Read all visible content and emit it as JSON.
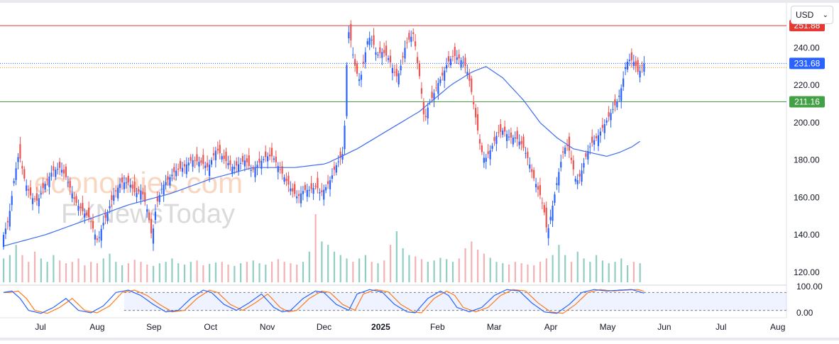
{
  "toolbar": {
    "currency_label": "USD",
    "currency_icon": "chevron-down-icon"
  },
  "watermark": {
    "line1": "economies.com",
    "line2": "FXNewsToday"
  },
  "chart_data": {
    "type": "candlestick",
    "title": "",
    "colors": {
      "up": "#2962ff",
      "down": "#ef5350",
      "ma": "#3d6df0",
      "volume_up": "#7cc6b8",
      "volume_down": "#f0a3a6",
      "resistance": "#e53935",
      "support": "#43a047",
      "current": "#2962ff",
      "stoch_k": "#2962ff",
      "stoch_d": "#ff7a1a"
    },
    "x_axis": {
      "ticks": [
        "Jul",
        "Aug",
        "Sep",
        "Oct",
        "Nov",
        "Dec",
        "2025",
        "Feb",
        "Mar",
        "Apr",
        "May",
        "Jun",
        "Jul",
        "Aug"
      ],
      "bold_ticks": [
        "2025"
      ]
    },
    "y_axis": {
      "ticks": [
        "240.00",
        "220.00",
        "200.00",
        "180.00",
        "160.00",
        "140.00",
        "120.00"
      ],
      "ylim": [
        115,
        258
      ]
    },
    "horizontal_lines": [
      {
        "label": "251.88",
        "value": 251.88,
        "role": "resistance"
      },
      {
        "label": "211.16",
        "value": 211.16,
        "role": "support"
      },
      {
        "label": "231.68",
        "value": 231.68,
        "role": "current-price"
      }
    ],
    "indicator": {
      "name": "stochastic",
      "ticks": [
        "100.00",
        "0.00"
      ],
      "upper_band": 80,
      "lower_band": 20
    },
    "price_path": [
      [
        0,
        138
      ],
      [
        3,
        148
      ],
      [
        6,
        172
      ],
      [
        8,
        184
      ],
      [
        11,
        168
      ],
      [
        14,
        160
      ],
      [
        17,
        158
      ],
      [
        20,
        166
      ],
      [
        24,
        174
      ],
      [
        28,
        176
      ],
      [
        31,
        170
      ],
      [
        35,
        158
      ],
      [
        39,
        152
      ],
      [
        42,
        149
      ],
      [
        44,
        142
      ],
      [
        46,
        136
      ],
      [
        48,
        145
      ],
      [
        50,
        150
      ],
      [
        53,
        160
      ],
      [
        57,
        168
      ],
      [
        61,
        168
      ],
      [
        64,
        162
      ],
      [
        67,
        164
      ],
      [
        70,
        152
      ],
      [
        72,
        138
      ],
      [
        74,
        156
      ],
      [
        77,
        166
      ],
      [
        80,
        170
      ],
      [
        83,
        174
      ],
      [
        87,
        176
      ],
      [
        91,
        180
      ],
      [
        95,
        179
      ],
      [
        99,
        176
      ],
      [
        103,
        186
      ],
      [
        107,
        180
      ],
      [
        111,
        176
      ],
      [
        114,
        178
      ],
      [
        117,
        180
      ],
      [
        120,
        174
      ],
      [
        123,
        178
      ],
      [
        127,
        182
      ],
      [
        130,
        182
      ],
      [
        133,
        176
      ],
      [
        136,
        170
      ],
      [
        139,
        164
      ],
      [
        142,
        160
      ],
      [
        145,
        164
      ],
      [
        148,
        164
      ],
      [
        151,
        166
      ],
      [
        153,
        162
      ],
      [
        156,
        166
      ],
      [
        158,
        170
      ],
      [
        160,
        176
      ],
      [
        162,
        180
      ],
      [
        164,
        184
      ],
      [
        165,
        208
      ],
      [
        166,
        246
      ],
      [
        167,
        250
      ],
      [
        168,
        240
      ],
      [
        170,
        228
      ],
      [
        172,
        222
      ],
      [
        174,
        234
      ],
      [
        176,
        246
      ],
      [
        178,
        244
      ],
      [
        180,
        236
      ],
      [
        183,
        238
      ],
      [
        186,
        234
      ],
      [
        188,
        228
      ],
      [
        190,
        224
      ],
      [
        192,
        232
      ],
      [
        194,
        242
      ],
      [
        196,
        245
      ],
      [
        198,
        248
      ],
      [
        199,
        236
      ],
      [
        201,
        222
      ],
      [
        203,
        200
      ],
      [
        205,
        210
      ],
      [
        207,
        214
      ],
      [
        209,
        220
      ],
      [
        212,
        226
      ],
      [
        214,
        232
      ],
      [
        217,
        236
      ],
      [
        220,
        234
      ],
      [
        222,
        232
      ],
      [
        224,
        226
      ],
      [
        226,
        214
      ],
      [
        228,
        200
      ],
      [
        230,
        186
      ],
      [
        232,
        180
      ],
      [
        235,
        186
      ],
      [
        238,
        194
      ],
      [
        241,
        196
      ],
      [
        244,
        192
      ],
      [
        247,
        192
      ],
      [
        250,
        188
      ],
      [
        253,
        180
      ],
      [
        255,
        172
      ],
      [
        257,
        166
      ],
      [
        259,
        160
      ],
      [
        261,
        150
      ],
      [
        262,
        140
      ],
      [
        264,
        152
      ],
      [
        266,
        164
      ],
      [
        268,
        176
      ],
      [
        270,
        186
      ],
      [
        272,
        188
      ],
      [
        274,
        178
      ],
      [
        276,
        168
      ],
      [
        278,
        172
      ],
      [
        280,
        180
      ],
      [
        282,
        186
      ],
      [
        284,
        190
      ],
      [
        286,
        192
      ],
      [
        288,
        196
      ],
      [
        290,
        200
      ],
      [
        292,
        204
      ],
      [
        294,
        208
      ],
      [
        296,
        212
      ],
      [
        298,
        220
      ],
      [
        300,
        232
      ],
      [
        302,
        234
      ],
      [
        304,
        232
      ],
      [
        306,
        226
      ],
      [
        308,
        231.68
      ]
    ],
    "ma_path": [
      [
        0,
        134
      ],
      [
        20,
        140
      ],
      [
        40,
        148
      ],
      [
        60,
        156
      ],
      [
        80,
        162
      ],
      [
        100,
        170
      ],
      [
        120,
        176
      ],
      [
        140,
        176
      ],
      [
        155,
        178
      ],
      [
        170,
        186
      ],
      [
        185,
        196
      ],
      [
        200,
        206
      ],
      [
        215,
        220
      ],
      [
        225,
        227
      ],
      [
        232,
        230
      ],
      [
        240,
        224
      ],
      [
        250,
        212
      ],
      [
        258,
        200
      ],
      [
        266,
        192
      ],
      [
        274,
        186
      ],
      [
        282,
        184
      ],
      [
        290,
        182
      ],
      [
        296,
        184
      ],
      [
        302,
        187
      ],
      [
        306,
        190
      ]
    ],
    "stochastic_k": [
      [
        0,
        80
      ],
      [
        4,
        85
      ],
      [
        8,
        60
      ],
      [
        12,
        20
      ],
      [
        18,
        10
      ],
      [
        24,
        30
      ],
      [
        30,
        60
      ],
      [
        36,
        20
      ],
      [
        42,
        12
      ],
      [
        48,
        35
      ],
      [
        54,
        80
      ],
      [
        60,
        88
      ],
      [
        66,
        70
      ],
      [
        72,
        40
      ],
      [
        78,
        15
      ],
      [
        84,
        20
      ],
      [
        90,
        60
      ],
      [
        96,
        88
      ],
      [
        100,
        80
      ],
      [
        106,
        40
      ],
      [
        112,
        20
      ],
      [
        118,
        45
      ],
      [
        124,
        75
      ],
      [
        130,
        30
      ],
      [
        134,
        15
      ],
      [
        138,
        20
      ],
      [
        144,
        60
      ],
      [
        150,
        85
      ],
      [
        154,
        80
      ],
      [
        160,
        40
      ],
      [
        166,
        20
      ],
      [
        170,
        75
      ],
      [
        176,
        90
      ],
      [
        182,
        82
      ],
      [
        188,
        40
      ],
      [
        194,
        15
      ],
      [
        198,
        12
      ],
      [
        204,
        60
      ],
      [
        210,
        85
      ],
      [
        214,
        70
      ],
      [
        218,
        30
      ],
      [
        224,
        15
      ],
      [
        230,
        30
      ],
      [
        236,
        70
      ],
      [
        242,
        90
      ],
      [
        248,
        85
      ],
      [
        254,
        45
      ],
      [
        260,
        15
      ],
      [
        266,
        10
      ],
      [
        272,
        40
      ],
      [
        278,
        80
      ],
      [
        284,
        90
      ],
      [
        290,
        85
      ],
      [
        296,
        88
      ],
      [
        302,
        90
      ],
      [
        306,
        82
      ],
      [
        308,
        78
      ]
    ],
    "volume_levels": [
      0.35,
      0.4,
      0.55,
      0.4,
      0.3,
      0.45,
      0.35,
      0.3,
      0.4,
      0.32,
      0.28,
      0.3,
      0.35,
      0.25,
      0.3,
      0.28,
      0.35,
      0.42,
      0.3,
      0.25,
      0.28,
      0.33,
      0.3,
      0.26,
      0.24,
      0.28,
      0.3,
      0.35,
      0.28,
      0.26,
      0.3,
      0.32,
      0.25,
      0.27,
      0.29,
      0.3,
      0.26,
      0.24,
      0.28,
      0.3,
      0.32,
      0.28,
      0.26,
      0.3,
      0.34,
      0.3,
      0.28,
      0.26,
      0.3,
      0.45,
      1.0,
      0.6,
      0.55,
      0.45,
      0.4,
      0.35,
      0.3,
      0.35,
      0.4,
      0.3,
      0.28,
      0.32,
      0.55,
      0.75,
      0.5,
      0.4,
      0.38,
      0.34,
      0.3,
      0.32,
      0.36,
      0.34,
      0.3,
      0.35,
      0.5,
      0.6,
      0.48,
      0.42,
      0.36,
      0.3,
      0.28,
      0.26,
      0.3,
      0.28,
      0.26,
      0.25,
      0.3
    ]
  }
}
